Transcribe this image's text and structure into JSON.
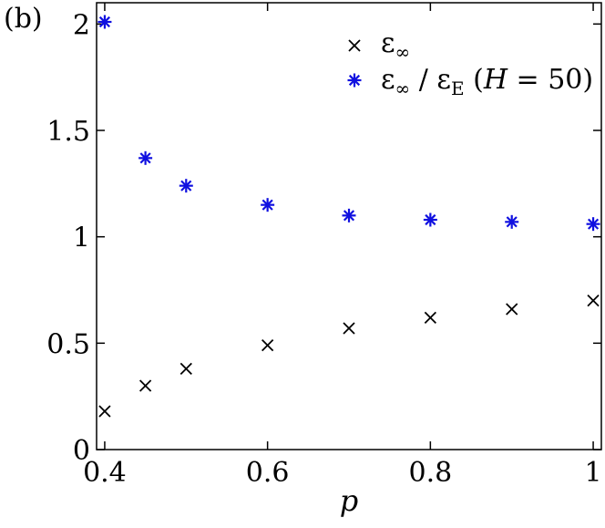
{
  "chart_data": {
    "type": "scatter",
    "panel_label": "(b)",
    "xlabel": "p",
    "ylabel": "",
    "xlim": [
      0.39,
      1.01
    ],
    "ylim": [
      0,
      2.1
    ],
    "xticks": [
      0.4,
      0.6,
      0.8,
      1.0
    ],
    "xtick_labels": [
      "0.4",
      "0.6",
      "0.8",
      "1"
    ],
    "yticks": [
      0,
      0.5,
      1.0,
      1.5,
      2.0
    ],
    "ytick_labels": [
      "0",
      "0.5",
      "1",
      "1.5",
      "2"
    ],
    "grid": false,
    "legend_position": "top-right",
    "series": [
      {
        "name": "ε∞",
        "legend": {
          "main": "ε",
          "sub": "∞",
          "extra": ""
        },
        "marker": "x",
        "color": "#000000",
        "x": [
          0.4,
          0.45,
          0.5,
          0.6,
          0.7,
          0.8,
          0.9,
          1.0
        ],
        "y": [
          0.18,
          0.3,
          0.38,
          0.49,
          0.57,
          0.62,
          0.66,
          0.7
        ]
      },
      {
        "name": "ε∞ / εE (H = 50)",
        "legend": {
          "main": "ε",
          "sub": "∞",
          "sep": " / ε",
          "sub2": "E",
          "open": " (",
          "var": "H",
          "rest": " = 50)"
        },
        "marker": "asterisk",
        "color": "#1010e0",
        "x": [
          0.4,
          0.45,
          0.5,
          0.6,
          0.7,
          0.8,
          0.9,
          1.0
        ],
        "y": [
          2.01,
          1.37,
          1.24,
          1.15,
          1.1,
          1.08,
          1.07,
          1.06
        ]
      }
    ]
  }
}
